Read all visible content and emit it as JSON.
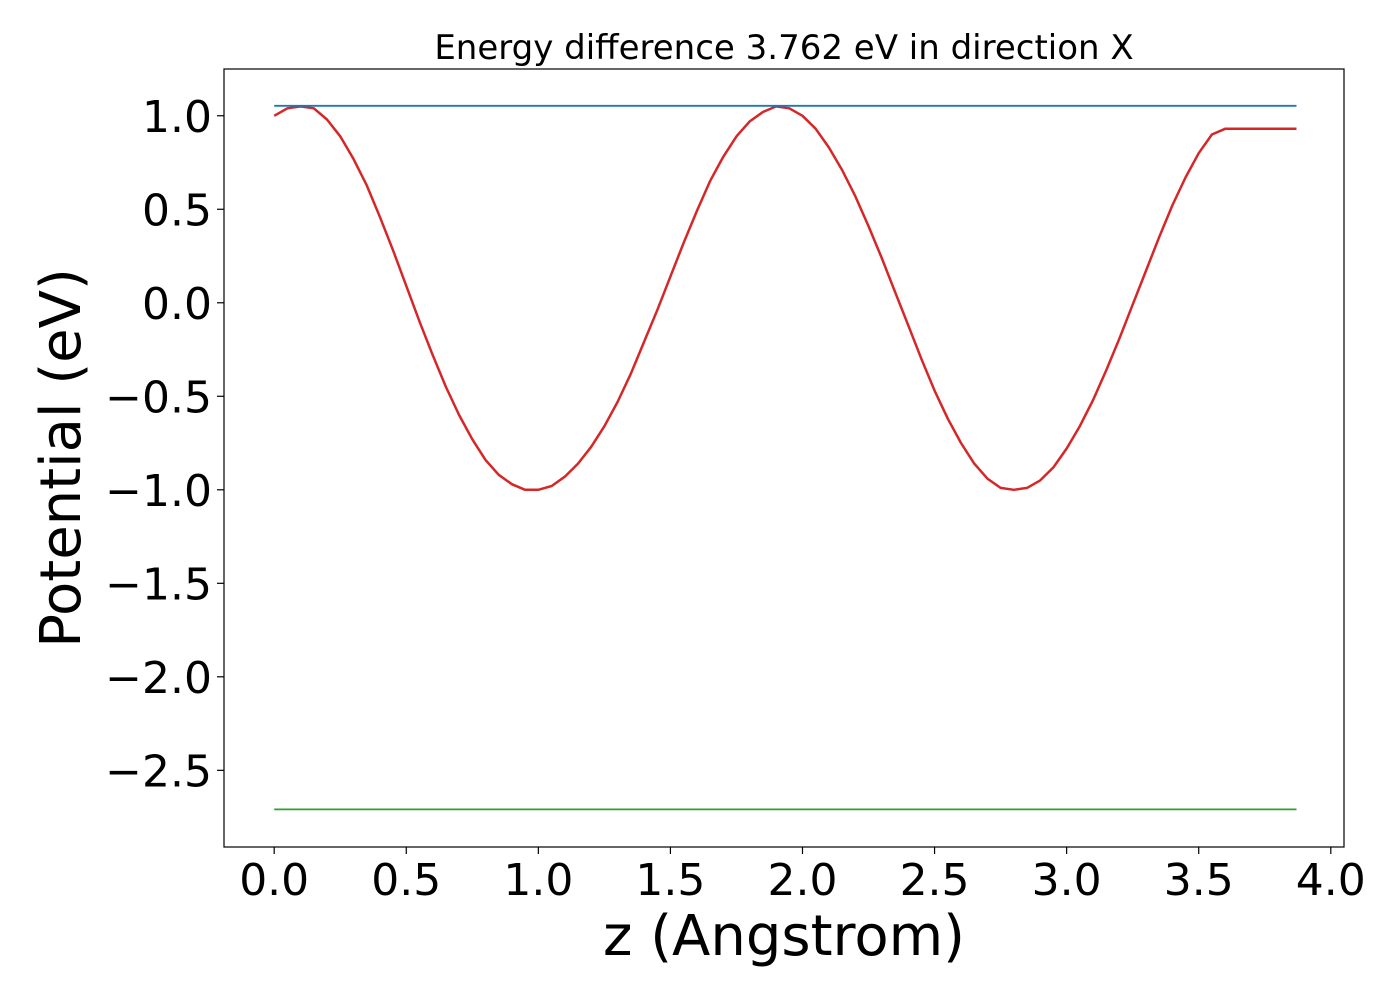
{
  "chart_data": {
    "type": "line",
    "title": "Energy difference 3.762 eV in direction X",
    "xlabel": "z (Angstrom)",
    "ylabel": "Potential (eV)",
    "xlim": [
      -0.19,
      4.05
    ],
    "ylim": [
      -2.91,
      1.25
    ],
    "x_ticks": [
      0.0,
      0.5,
      1.0,
      1.5,
      2.0,
      2.5,
      3.0,
      3.5,
      4.0
    ],
    "x_tick_labels": [
      "0.0",
      "0.5",
      "1.0",
      "1.5",
      "2.0",
      "2.5",
      "3.0",
      "3.5",
      "4.0"
    ],
    "y_ticks": [
      1.0,
      0.5,
      0.0,
      -0.5,
      -1.0,
      -1.5,
      -2.0,
      -2.5
    ],
    "y_tick_labels": [
      "1.0",
      "0.5",
      "0.0",
      "−0.5",
      "−1.0",
      "−1.5",
      "−2.0",
      "−2.5"
    ],
    "grid": false,
    "legend": false,
    "series": [
      {
        "color": "#d62728",
        "x": [
          0.0,
          0.05,
          0.1,
          0.15,
          0.2,
          0.25,
          0.3,
          0.35,
          0.4,
          0.45,
          0.5,
          0.55,
          0.6,
          0.65,
          0.7,
          0.75,
          0.8,
          0.85,
          0.9,
          0.95,
          1.0,
          1.05,
          1.1,
          1.15,
          1.2,
          1.25,
          1.3,
          1.35,
          1.4,
          1.45,
          1.5,
          1.55,
          1.6,
          1.65,
          1.7,
          1.75,
          1.8,
          1.85,
          1.9,
          1.95,
          2.0,
          2.05,
          2.1,
          2.15,
          2.2,
          2.25,
          2.3,
          2.35,
          2.4,
          2.45,
          2.5,
          2.55,
          2.6,
          2.65,
          2.7,
          2.75,
          2.8,
          2.85,
          2.9,
          2.95,
          3.0,
          3.05,
          3.1,
          3.15,
          3.2,
          3.25,
          3.3,
          3.35,
          3.4,
          3.45,
          3.5,
          3.55,
          3.6,
          3.65,
          3.7,
          3.75,
          3.8,
          3.85,
          3.87
        ],
        "y": [
          1.0,
          1.04,
          1.05,
          1.04,
          0.98,
          0.89,
          0.77,
          0.63,
          0.46,
          0.28,
          0.09,
          -0.1,
          -0.28,
          -0.45,
          -0.6,
          -0.73,
          -0.84,
          -0.92,
          -0.97,
          -1.0,
          -1.0,
          -0.98,
          -0.93,
          -0.86,
          -0.77,
          -0.66,
          -0.53,
          -0.38,
          -0.21,
          -0.04,
          0.14,
          0.32,
          0.49,
          0.65,
          0.78,
          0.89,
          0.97,
          1.02,
          1.05,
          1.04,
          1.0,
          0.93,
          0.83,
          0.71,
          0.57,
          0.41,
          0.24,
          0.06,
          -0.12,
          -0.3,
          -0.47,
          -0.62,
          -0.75,
          -0.86,
          -0.94,
          -0.99,
          -1.0,
          -0.99,
          -0.95,
          -0.88,
          -0.78,
          -0.66,
          -0.52,
          -0.36,
          -0.19,
          -0.01,
          0.17,
          0.35,
          0.52,
          0.67,
          0.8,
          0.9,
          0.93,
          0.93,
          0.93,
          0.93,
          0.93,
          0.93,
          0.93
        ]
      },
      {
        "color": "#1f77b4",
        "x": [
          0.0,
          3.87
        ],
        "y": [
          1.053,
          1.053
        ]
      },
      {
        "color": "#2ca02c",
        "x": [
          0.0,
          3.87
        ],
        "y": [
          -2.709,
          -2.709
        ]
      }
    ]
  }
}
